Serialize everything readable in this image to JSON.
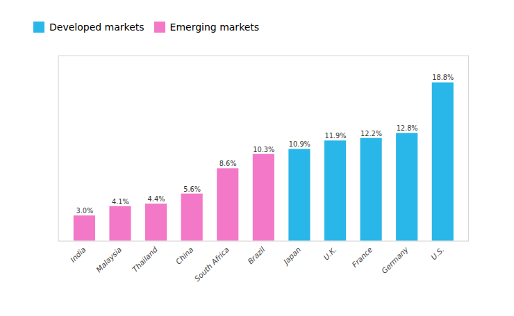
{
  "chart_data": {
    "type": "bar",
    "categories": [
      "India",
      "Malaysia",
      "Thailand",
      "China",
      "South Africa",
      "Brazil",
      "Japan",
      "U.K.",
      "France",
      "Germany",
      "U.S."
    ],
    "series": [
      {
        "name": "Developed markets",
        "color": "#29b6e8",
        "values": [
          null,
          null,
          null,
          null,
          null,
          null,
          10.9,
          11.9,
          12.2,
          12.8,
          18.8
        ],
        "value_labels": [
          null,
          null,
          null,
          null,
          null,
          null,
          "10.9%",
          "11.9%",
          "12.2%",
          "12.8%",
          "18.8%"
        ]
      },
      {
        "name": "Emerging markets",
        "color": "#f478c8",
        "values": [
          3.0,
          4.1,
          4.4,
          5.6,
          8.6,
          10.3,
          null,
          null,
          null,
          null,
          null
        ],
        "value_labels": [
          "3.0%",
          "4.1%",
          "4.4%",
          "5.6%",
          "8.6%",
          "10.3%",
          null,
          null,
          null,
          null,
          null
        ]
      }
    ],
    "ylim": [
      0,
      22
    ],
    "data_labels": true,
    "tick_labels": "x",
    "legend": "upper left"
  }
}
